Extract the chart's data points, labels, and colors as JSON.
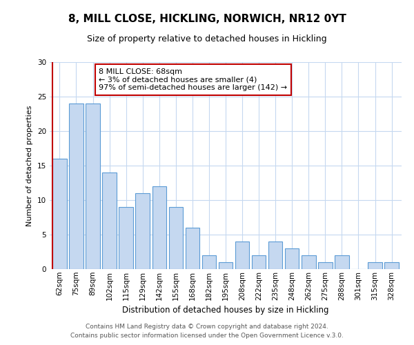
{
  "title": "8, MILL CLOSE, HICKLING, NORWICH, NR12 0YT",
  "subtitle": "Size of property relative to detached houses in Hickling",
  "xlabel": "Distribution of detached houses by size in Hickling",
  "ylabel": "Number of detached properties",
  "bar_labels": [
    "62sqm",
    "75sqm",
    "89sqm",
    "102sqm",
    "115sqm",
    "129sqm",
    "142sqm",
    "155sqm",
    "168sqm",
    "182sqm",
    "195sqm",
    "208sqm",
    "222sqm",
    "235sqm",
    "248sqm",
    "262sqm",
    "275sqm",
    "288sqm",
    "301sqm",
    "315sqm",
    "328sqm"
  ],
  "bar_values": [
    16,
    24,
    24,
    14,
    9,
    11,
    12,
    9,
    6,
    2,
    1,
    4,
    2,
    4,
    3,
    2,
    1,
    2,
    0,
    1,
    1
  ],
  "bar_color": "#c5d8f0",
  "bar_edge_color": "#5b9bd5",
  "highlight_color": "#c00000",
  "ylim": [
    0,
    30
  ],
  "yticks": [
    0,
    5,
    10,
    15,
    20,
    25,
    30
  ],
  "annotation_title": "8 MILL CLOSE: 68sqm",
  "annotation_line1": "← 3% of detached houses are smaller (4)",
  "annotation_line2": "97% of semi-detached houses are larger (142) →",
  "annotation_box_color": "#ffffff",
  "annotation_box_edge": "#c00000",
  "footer_line1": "Contains HM Land Registry data © Crown copyright and database right 2024.",
  "footer_line2": "Contains public sector information licensed under the Open Government Licence v.3.0.",
  "background_color": "#ffffff",
  "grid_color": "#c5d8f0",
  "title_fontsize": 11,
  "subtitle_fontsize": 9,
  "ylabel_fontsize": 8,
  "xlabel_fontsize": 8.5,
  "tick_fontsize": 7.5,
  "footer_fontsize": 6.5,
  "ann_fontsize": 8
}
